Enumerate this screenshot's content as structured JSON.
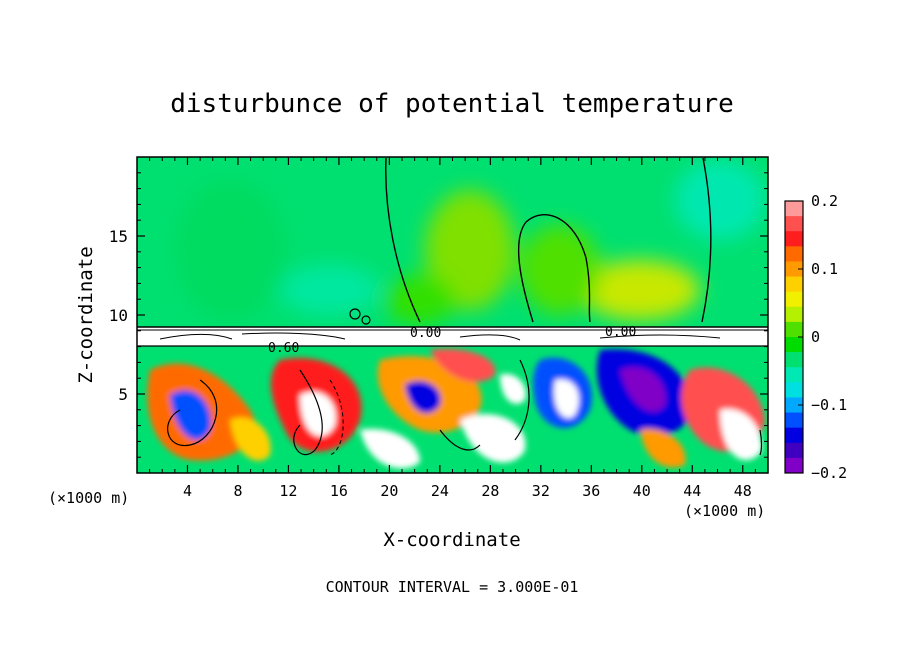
{
  "chart_data": {
    "type": "heatmap",
    "title": "disturbunce of potential temperature",
    "xlabel": "X-coordinate",
    "ylabel": "Z-coordinate",
    "x_unit_label": "(×1000 m)",
    "xlim": [
      0,
      50
    ],
    "ylim": [
      0,
      20
    ],
    "x_ticks": [
      4,
      8,
      12,
      16,
      20,
      24,
      28,
      32,
      36,
      40,
      44,
      48
    ],
    "y_ticks": [
      5,
      10,
      15
    ],
    "colorbar": {
      "range": [
        -0.2,
        0.2
      ],
      "tick_values": [
        0.2,
        0.1,
        0,
        -0.1,
        -0.2
      ],
      "tick_labels": [
        "0.2",
        "0.1",
        "0",
        "−0.1",
        "−0.2"
      ],
      "colors": [
        "#ff9a9a",
        "#ff5050",
        "#ff1e1e",
        "#ff6a00",
        "#ff9a00",
        "#ffd000",
        "#f0f000",
        "#b4f000",
        "#50e000",
        "#00dc00",
        "#00e070",
        "#00e8b4",
        "#00e0e0",
        "#00a8ff",
        "#0050ff",
        "#0000e0",
        "#4000c0",
        "#8000c8"
      ]
    },
    "contour_labels": [
      "0.60",
      "0.00"
    ],
    "contour_interval_text": "CONTOUR INTERVAL = 3.000E-01",
    "grid": false,
    "legend": "colorbar-right"
  }
}
